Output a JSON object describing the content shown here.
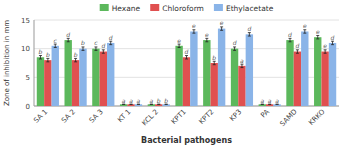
{
  "chart_data": {
    "type": "bar",
    "xlabel": "Bacterial pathogens",
    "ylabel": "Zone of inhibition in mm",
    "categories": [
      "SA 1",
      "SA 2",
      "SA 3",
      "KT 1",
      "KCL 2",
      "KPT1",
      "KPT2",
      "KP3",
      "PA",
      "SAMD",
      "KRKO"
    ],
    "series": [
      {
        "name": "Hexane",
        "color": "#5cb85c",
        "values": [
          8.5,
          11.5,
          10.0,
          0.3,
          0.3,
          10.5,
          11.5,
          10.0,
          0.3,
          11.5,
          12.0
        ],
        "errors": [
          0.3,
          0.3,
          0.3,
          0.0,
          0.0,
          0.3,
          0.3,
          0.3,
          0.0,
          0.3,
          0.3
        ],
        "letters": [
          "b",
          "d",
          "c",
          "a",
          "a",
          "e",
          "e",
          "d",
          "a",
          "d",
          "e"
        ]
      },
      {
        "name": "Chloroform",
        "color": "#e05050",
        "values": [
          8.0,
          8.0,
          9.5,
          0.3,
          0.3,
          8.5,
          7.5,
          7.0,
          0.3,
          9.5,
          9.5
        ],
        "errors": [
          0.3,
          0.3,
          0.3,
          0.0,
          0.0,
          0.3,
          0.3,
          0.3,
          0.0,
          0.3,
          0.3
        ],
        "letters": [
          "b",
          "b",
          "d",
          "a",
          "b",
          "d",
          "b",
          "a",
          "a",
          "d",
          "e"
        ]
      },
      {
        "name": "Ethylacetate",
        "color": "#8ab4e8",
        "values": [
          10.5,
          10.0,
          11.0,
          0.3,
          0.3,
          13.0,
          13.5,
          12.5,
          0.3,
          13.0,
          11.0
        ],
        "errors": [
          0.3,
          0.3,
          0.3,
          0.0,
          0.0,
          0.3,
          0.3,
          0.3,
          0.0,
          0.3,
          0.3
        ],
        "letters": [
          "c",
          "b",
          "d",
          "a",
          "b",
          "e",
          "e",
          "d",
          "a",
          "e",
          "d"
        ]
      }
    ],
    "ylim": [
      0,
      15
    ],
    "yticks": [
      0,
      5,
      10,
      15
    ],
    "grid": true,
    "legend": "top"
  }
}
